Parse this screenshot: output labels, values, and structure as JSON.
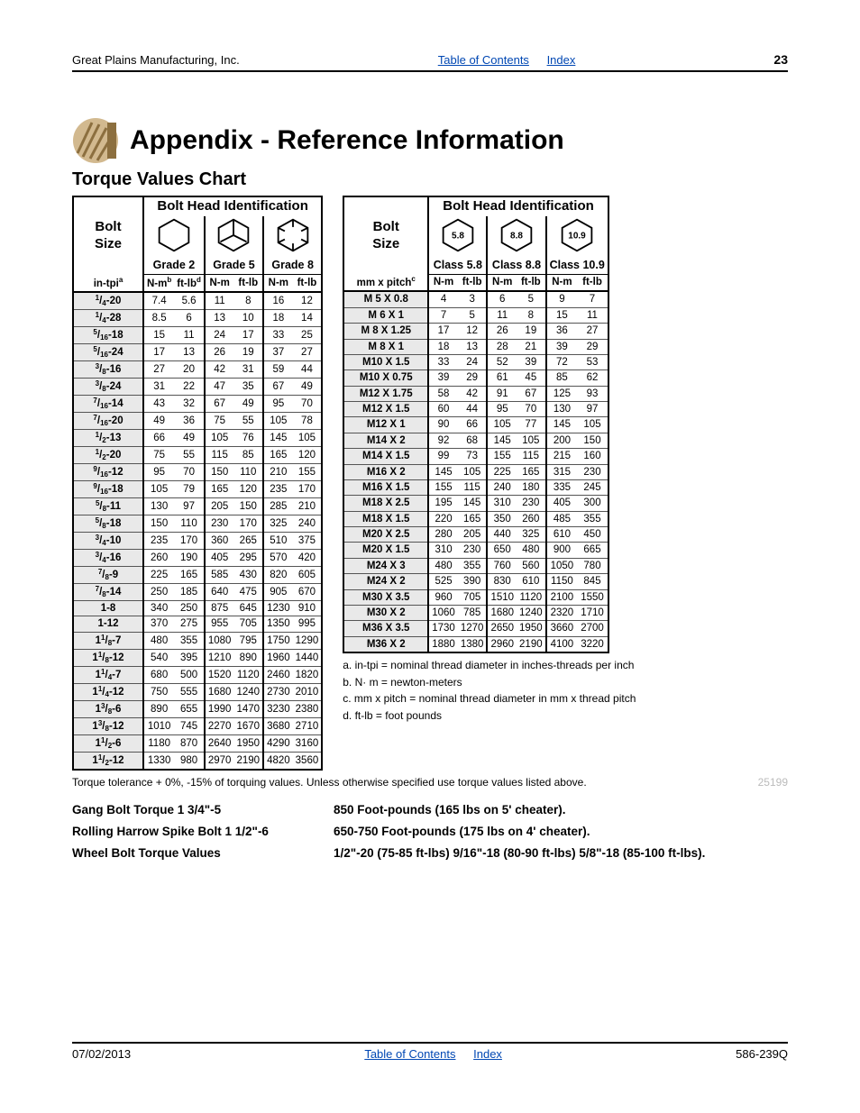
{
  "header": {
    "company": "Great Plains Manufacturing, Inc.",
    "toc": "Table of Contents",
    "index": "Index",
    "pagenum": "23"
  },
  "footer": {
    "date": "07/02/2013",
    "toc": "Table of Contents",
    "index": "Index",
    "docnum": "586-239Q"
  },
  "title": "Appendix - Reference Information",
  "subtitle": "Torque Values Chart",
  "logo": {
    "fill": "#d2b98f",
    "fill2": "#bfa376"
  },
  "left_table": {
    "bolt_head": "Bolt Head Identification",
    "bolt_size": "Bolt\nSize",
    "grades": [
      "Grade 2",
      "Grade 5",
      "Grade 8"
    ],
    "unit_a": "in-tpi",
    "unit_a_sup": "a",
    "u_nm": "N-m",
    "u_nm_sup": "b",
    "u_ft": "ft-lb",
    "u_ft_sup": "d",
    "hex_type": [
      0,
      1,
      2
    ],
    "row_bg": "#e9e9e9",
    "rows": [
      {
        "size": "<sup>1</sup>/<sub>4</sub>-20",
        "v": [
          "7.4",
          "5.6",
          "11",
          "8",
          "16",
          "12"
        ]
      },
      {
        "size": "<sup>1</sup>/<sub>4</sub>-28",
        "v": [
          "8.5",
          "6",
          "13",
          "10",
          "18",
          "14"
        ]
      },
      {
        "size": "<sup>5</sup>/<sub>16</sub>-18",
        "v": [
          "15",
          "11",
          "24",
          "17",
          "33",
          "25"
        ]
      },
      {
        "size": "<sup>5</sup>/<sub>16</sub>-24",
        "v": [
          "17",
          "13",
          "26",
          "19",
          "37",
          "27"
        ]
      },
      {
        "size": "<sup>3</sup>/<sub>8</sub>-16",
        "v": [
          "27",
          "20",
          "42",
          "31",
          "59",
          "44"
        ]
      },
      {
        "size": "<sup>3</sup>/<sub>8</sub>-24",
        "v": [
          "31",
          "22",
          "47",
          "35",
          "67",
          "49"
        ]
      },
      {
        "size": "<sup>7</sup>/<sub>16</sub>-14",
        "v": [
          "43",
          "32",
          "67",
          "49",
          "95",
          "70"
        ]
      },
      {
        "size": "<sup>7</sup>/<sub>16</sub>-20",
        "v": [
          "49",
          "36",
          "75",
          "55",
          "105",
          "78"
        ]
      },
      {
        "size": "<sup>1</sup>/<sub>2</sub>-13",
        "v": [
          "66",
          "49",
          "105",
          "76",
          "145",
          "105"
        ]
      },
      {
        "size": "<sup>1</sup>/<sub>2</sub>-20",
        "v": [
          "75",
          "55",
          "115",
          "85",
          "165",
          "120"
        ]
      },
      {
        "size": "<sup>9</sup>/<sub>16</sub>-12",
        "v": [
          "95",
          "70",
          "150",
          "110",
          "210",
          "155"
        ]
      },
      {
        "size": "<sup>9</sup>/<sub>16</sub>-18",
        "v": [
          "105",
          "79",
          "165",
          "120",
          "235",
          "170"
        ]
      },
      {
        "size": "<sup>5</sup>/<sub>8</sub>-11",
        "v": [
          "130",
          "97",
          "205",
          "150",
          "285",
          "210"
        ]
      },
      {
        "size": "<sup>5</sup>/<sub>8</sub>-18",
        "v": [
          "150",
          "110",
          "230",
          "170",
          "325",
          "240"
        ]
      },
      {
        "size": "<sup>3</sup>/<sub>4</sub>-10",
        "v": [
          "235",
          "170",
          "360",
          "265",
          "510",
          "375"
        ]
      },
      {
        "size": "<sup>3</sup>/<sub>4</sub>-16",
        "v": [
          "260",
          "190",
          "405",
          "295",
          "570",
          "420"
        ]
      },
      {
        "size": "<sup>7</sup>/<sub>8</sub>-9",
        "v": [
          "225",
          "165",
          "585",
          "430",
          "820",
          "605"
        ]
      },
      {
        "size": "<sup>7</sup>/<sub>8</sub>-14",
        "v": [
          "250",
          "185",
          "640",
          "475",
          "905",
          "670"
        ]
      },
      {
        "size": "1-8",
        "v": [
          "340",
          "250",
          "875",
          "645",
          "1230",
          "910"
        ]
      },
      {
        "size": "1-12",
        "v": [
          "370",
          "275",
          "955",
          "705",
          "1350",
          "995"
        ]
      },
      {
        "size": "1<sup>1</sup>/<sub>8</sub>-7",
        "v": [
          "480",
          "355",
          "1080",
          "795",
          "1750",
          "1290"
        ]
      },
      {
        "size": "1<sup>1</sup>/<sub>8</sub>-12",
        "v": [
          "540",
          "395",
          "1210",
          "890",
          "1960",
          "1440"
        ]
      },
      {
        "size": "1<sup>1</sup>/<sub>4</sub>-7",
        "v": [
          "680",
          "500",
          "1520",
          "1120",
          "2460",
          "1820"
        ]
      },
      {
        "size": "1<sup>1</sup>/<sub>4</sub>-12",
        "v": [
          "750",
          "555",
          "1680",
          "1240",
          "2730",
          "2010"
        ]
      },
      {
        "size": "1<sup>3</sup>/<sub>8</sub>-6",
        "v": [
          "890",
          "655",
          "1990",
          "1470",
          "3230",
          "2380"
        ]
      },
      {
        "size": "1<sup>3</sup>/<sub>8</sub>-12",
        "v": [
          "1010",
          "745",
          "2270",
          "1670",
          "3680",
          "2710"
        ]
      },
      {
        "size": "1<sup>1</sup>/<sub>2</sub>-6",
        "v": [
          "1180",
          "870",
          "2640",
          "1950",
          "4290",
          "3160"
        ]
      },
      {
        "size": "1<sup>1</sup>/<sub>2</sub>-12",
        "v": [
          "1330",
          "980",
          "2970",
          "2190",
          "4820",
          "3560"
        ]
      }
    ]
  },
  "right_table": {
    "bolt_head": "Bolt Head Identification",
    "bolt_size": "Bolt\nSize",
    "classes": [
      "Class 5.8",
      "Class 8.8",
      "Class 10.9"
    ],
    "class_nums": [
      "5.8",
      "8.8",
      "10.9"
    ],
    "unit_a": "mm x pitch",
    "unit_a_sup": "c",
    "u_nm": "N-m",
    "u_ft": "ft-lb",
    "rows": [
      {
        "size": "M 5 X 0.8",
        "v": [
          "4",
          "3",
          "6",
          "5",
          "9",
          "7"
        ]
      },
      {
        "size": "M 6 X 1",
        "v": [
          "7",
          "5",
          "11",
          "8",
          "15",
          "11"
        ]
      },
      {
        "size": "M 8 X 1.25",
        "v": [
          "17",
          "12",
          "26",
          "19",
          "36",
          "27"
        ]
      },
      {
        "size": "M 8 X 1",
        "v": [
          "18",
          "13",
          "28",
          "21",
          "39",
          "29"
        ]
      },
      {
        "size": "M10 X 1.5",
        "v": [
          "33",
          "24",
          "52",
          "39",
          "72",
          "53"
        ]
      },
      {
        "size": "M10 X 0.75",
        "v": [
          "39",
          "29",
          "61",
          "45",
          "85",
          "62"
        ]
      },
      {
        "size": "M12 X 1.75",
        "v": [
          "58",
          "42",
          "91",
          "67",
          "125",
          "93"
        ]
      },
      {
        "size": "M12 X 1.5",
        "v": [
          "60",
          "44",
          "95",
          "70",
          "130",
          "97"
        ]
      },
      {
        "size": "M12 X 1",
        "v": [
          "90",
          "66",
          "105",
          "77",
          "145",
          "105"
        ]
      },
      {
        "size": "M14 X 2",
        "v": [
          "92",
          "68",
          "145",
          "105",
          "200",
          "150"
        ]
      },
      {
        "size": "M14 X 1.5",
        "v": [
          "99",
          "73",
          "155",
          "115",
          "215",
          "160"
        ]
      },
      {
        "size": "M16 X 2",
        "v": [
          "145",
          "105",
          "225",
          "165",
          "315",
          "230"
        ]
      },
      {
        "size": "M16 X 1.5",
        "v": [
          "155",
          "115",
          "240",
          "180",
          "335",
          "245"
        ]
      },
      {
        "size": "M18 X 2.5",
        "v": [
          "195",
          "145",
          "310",
          "230",
          "405",
          "300"
        ]
      },
      {
        "size": "M18 X 1.5",
        "v": [
          "220",
          "165",
          "350",
          "260",
          "485",
          "355"
        ]
      },
      {
        "size": "M20 X 2.5",
        "v": [
          "280",
          "205",
          "440",
          "325",
          "610",
          "450"
        ]
      },
      {
        "size": "M20 X 1.5",
        "v": [
          "310",
          "230",
          "650",
          "480",
          "900",
          "665"
        ]
      },
      {
        "size": "M24 X 3",
        "v": [
          "480",
          "355",
          "760",
          "560",
          "1050",
          "780"
        ]
      },
      {
        "size": "M24 X 2",
        "v": [
          "525",
          "390",
          "830",
          "610",
          "1150",
          "845"
        ]
      },
      {
        "size": "M30 X 3.5",
        "v": [
          "960",
          "705",
          "1510",
          "1120",
          "2100",
          "1550"
        ]
      },
      {
        "size": "M30 X 2",
        "v": [
          "1060",
          "785",
          "1680",
          "1240",
          "2320",
          "1710"
        ]
      },
      {
        "size": "M36 X 3.5",
        "v": [
          "1730",
          "1270",
          "2650",
          "1950",
          "3660",
          "2700"
        ]
      },
      {
        "size": "M36 X 2",
        "v": [
          "1880",
          "1380",
          "2960",
          "2190",
          "4100",
          "3220"
        ]
      }
    ]
  },
  "footnotes": {
    "a": "a.  in-tpi = nominal thread diameter in inches-threads per inch",
    "b": "b.  N· m = newton-meters",
    "c": "c.  mm x pitch = nominal thread diameter in mm x thread  pitch",
    "d": "d.  ft-lb = foot pounds"
  },
  "tolerance": "Torque tolerance + 0%, -15% of torquing values. Unless otherwise specified use torque values listed above.",
  "ref_code": "25199",
  "specs": [
    {
      "label": "Gang Bolt Torque 1 3/4\"-5",
      "val": " 850 Foot-pounds   (165 lbs on 5' cheater)."
    },
    {
      "label": "Rolling Harrow Spike Bolt 1 1/2\"-6",
      "val": "650-750 Foot-pounds   (175 lbs on 4' cheater)."
    },
    {
      "label": "Wheel Bolt Torque Values",
      "val": "1/2\"-20 (75-85 ft-lbs) 9/16\"-18 (80-90 ft-lbs) 5/8\"-18 (85-100 ft-lbs)."
    }
  ]
}
